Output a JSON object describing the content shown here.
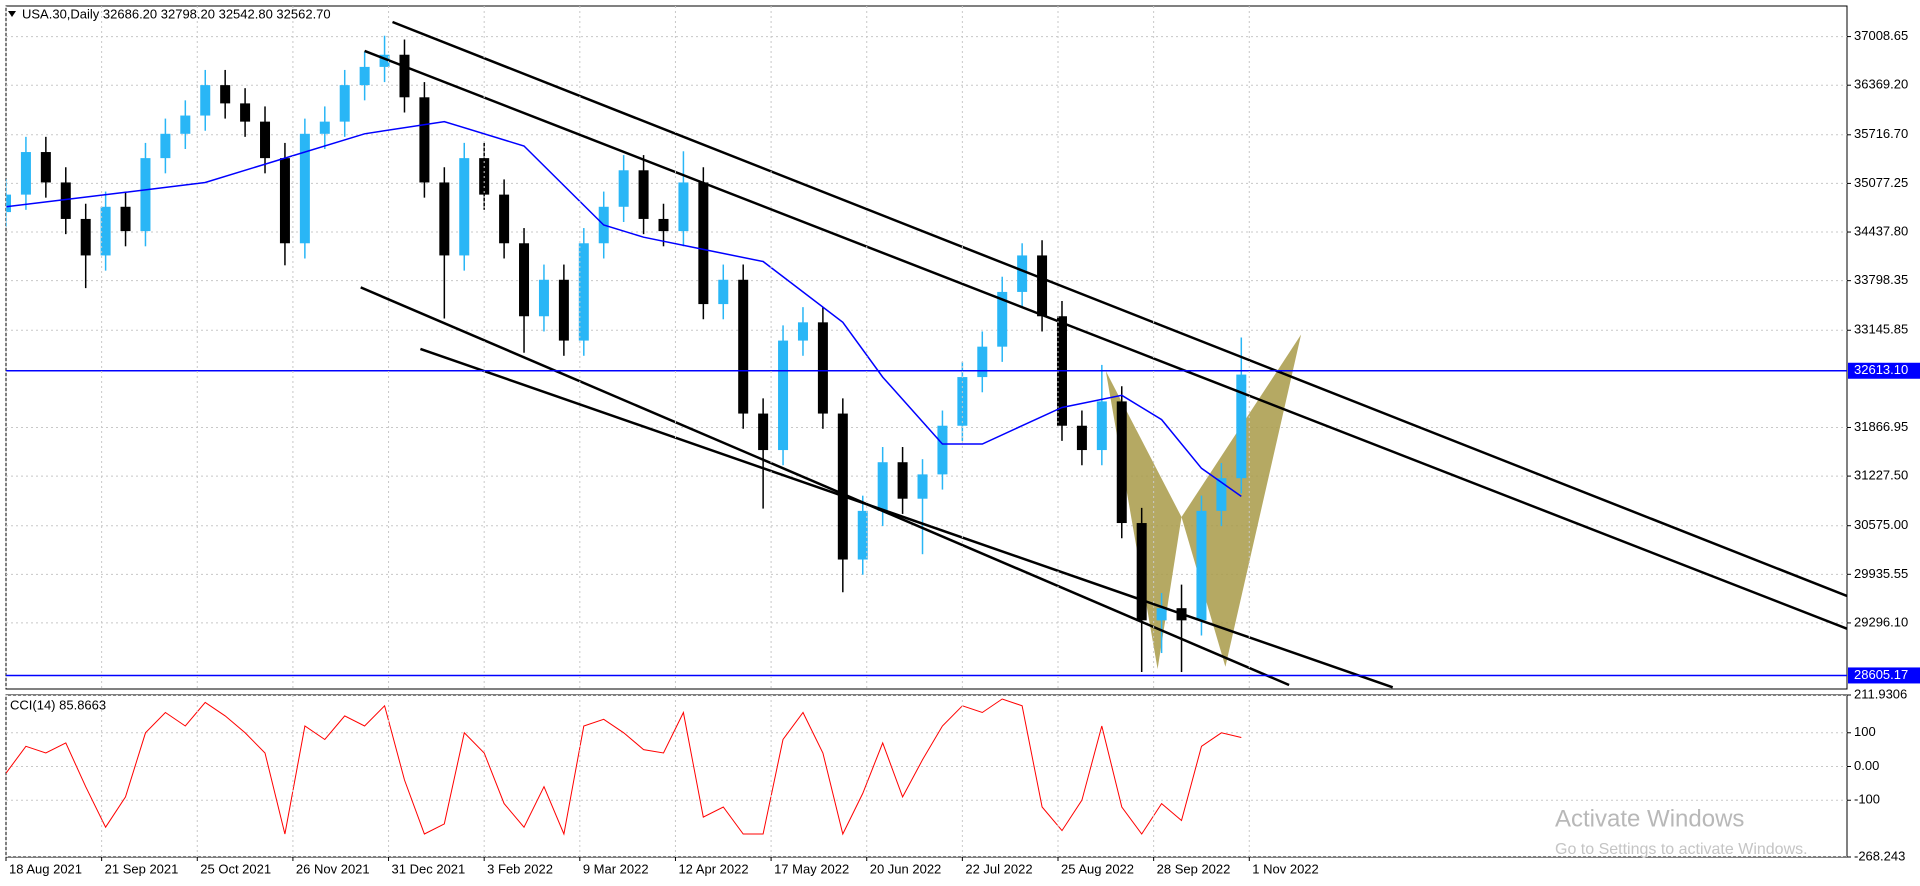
{
  "chart_data": [
    {
      "type": "candlestick",
      "title": "USA.30,Daily 32686.20 32798.20 32542.80 32562.70",
      "x": [
        0,
        5,
        10,
        15,
        20,
        25,
        30,
        35,
        40,
        45,
        50,
        55,
        60,
        65,
        70,
        75,
        80,
        85,
        90,
        95,
        100,
        105,
        110,
        115,
        120,
        125,
        130,
        135,
        140,
        145,
        150,
        155,
        160,
        165,
        170,
        175,
        180,
        185,
        190,
        195,
        200,
        205,
        210,
        215,
        220,
        225,
        230,
        235,
        240,
        245,
        250,
        255,
        260,
        265,
        270,
        275,
        280,
        285,
        290,
        295,
        300,
        305,
        310
      ],
      "open": [
        34700,
        34930,
        35490,
        35090,
        34610,
        34130,
        34770,
        34450,
        35410,
        35730,
        35970,
        36370,
        36130,
        35890,
        35410,
        34290,
        35730,
        35890,
        36370,
        36610,
        36770,
        36210,
        35090,
        34130,
        35410,
        34930,
        34290,
        33330,
        33810,
        33010,
        34290,
        34770,
        35250,
        34610,
        34450,
        35090,
        33490,
        33810,
        32050,
        31570,
        33010,
        33250,
        32050,
        30130,
        30770,
        31410,
        30930,
        31250,
        31890,
        32530,
        32930,
        33650,
        34130,
        33330,
        31890,
        31570,
        32210,
        30610,
        29330,
        29490,
        29330,
        30770,
        31200
      ],
      "high": [
        35130,
        35690,
        35690,
        35290,
        34810,
        34970,
        34970,
        35610,
        35930,
        36170,
        36570,
        36570,
        36330,
        36090,
        35610,
        35930,
        36090,
        36570,
        36810,
        37020,
        36970,
        36410,
        35290,
        35610,
        35610,
        35130,
        34490,
        34010,
        34010,
        34490,
        34970,
        35450,
        35450,
        34810,
        35500,
        35290,
        34010,
        34010,
        32250,
        33210,
        33450,
        33450,
        32250,
        30970,
        31610,
        31610,
        31450,
        32090,
        32730,
        33130,
        33850,
        34290,
        34330,
        33530,
        32090,
        32690,
        32410,
        30810,
        29690,
        29800,
        30970,
        31400,
        33050
      ],
      "low": [
        34500,
        34730,
        34890,
        34410,
        33700,
        33930,
        34250,
        34250,
        35210,
        35530,
        35770,
        35930,
        35690,
        35210,
        34000,
        34090,
        35530,
        35690,
        36170,
        36410,
        36010,
        34890,
        33300,
        33930,
        34730,
        34090,
        32850,
        33130,
        32810,
        32810,
        34090,
        34570,
        34410,
        34250,
        34250,
        33290,
        33290,
        31850,
        30800,
        31370,
        32810,
        31850,
        29700,
        29930,
        30570,
        30730,
        30200,
        31050,
        31690,
        32330,
        32730,
        33450,
        33130,
        31690,
        31370,
        31370,
        30410,
        28650,
        28900,
        28650,
        29130,
        30570,
        31000
      ],
      "close": [
        34930,
        35490,
        35090,
        34610,
        34130,
        34770,
        34450,
        35410,
        35730,
        35970,
        36370,
        36130,
        35890,
        35410,
        34290,
        35730,
        35890,
        36370,
        36610,
        36770,
        36210,
        35090,
        34130,
        35410,
        34930,
        34290,
        33330,
        33810,
        33010,
        34290,
        34770,
        35250,
        34610,
        34450,
        35090,
        33490,
        33810,
        32050,
        31570,
        33010,
        33250,
        32050,
        30130,
        30770,
        31410,
        30930,
        31250,
        31890,
        32530,
        32930,
        33650,
        34130,
        33330,
        31890,
        31570,
        32210,
        30610,
        29330,
        29490,
        29330,
        30770,
        31200,
        32562.7
      ],
      "up_color": "#29b6f6",
      "down_color": "#000000",
      "moving_average": {
        "color": "#0000ff",
        "x": [
          0,
          30,
          50,
          70,
          90,
          110,
          130,
          150,
          160,
          175,
          190,
          210,
          220,
          235,
          245,
          255,
          265,
          280,
          290,
          300,
          310
        ],
        "values": [
          34770,
          34960,
          35090,
          35410,
          35730,
          35890,
          35570,
          34530,
          34370,
          34210,
          34050,
          33250,
          32530,
          31650,
          31650,
          31890,
          32130,
          32290,
          31970,
          31330,
          30960
        ]
      },
      "trend_lines": [
        {
          "x": [
            97,
            462
          ],
          "values": [
            37200,
            29650
          ]
        },
        {
          "x": [
            90,
            462
          ],
          "values": [
            36820,
            29220
          ]
        },
        {
          "x": [
            89,
            322
          ],
          "values": [
            33710,
            28480
          ]
        },
        {
          "x": [
            104,
            348
          ],
          "values": [
            32900,
            28450
          ]
        }
      ],
      "trend_color": "#000000",
      "pattern": {
        "color": "#a89a48",
        "triangles": [
          {
            "x": [
              276,
              289,
              295
            ],
            "values": [
              32610,
              28690,
              30690
            ]
          },
          {
            "x": [
              295,
              306,
              325
            ],
            "values": [
              30690,
              28720,
              33090
            ]
          }
        ]
      },
      "hlines": [
        {
          "value": 32613.1,
          "label": "32613.10"
        },
        28605.17
      ],
      "hline_color": "#0000ff",
      "xlim": [
        0,
        462
      ],
      "ylim": [
        28427,
        37411
      ],
      "yticks": [
        37008.65,
        {
          "value": 36369.2,
          "label": "36369.20"
        },
        {
          "value": 35716.7,
          "label": "35716.70"
        },
        35077.25,
        {
          "value": 34437.8,
          "label": "34437.80"
        },
        33798.35,
        33145.85,
        31866.95,
        {
          "value": 31227.5,
          "label": "31227.50"
        },
        {
          "value": 30575,
          "label": "30575.00"
        },
        29935.55,
        {
          "value": 29296.1,
          "label": "29296.10"
        }
      ],
      "grid": true
    },
    {
      "type": "line",
      "title": "CCI(14) 85.8663",
      "x": [
        0,
        5,
        10,
        15,
        20,
        25,
        30,
        35,
        40,
        45,
        50,
        55,
        60,
        65,
        70,
        75,
        80,
        85,
        90,
        95,
        100,
        105,
        110,
        115,
        120,
        125,
        130,
        135,
        140,
        145,
        150,
        155,
        160,
        165,
        170,
        175,
        180,
        185,
        190,
        195,
        200,
        205,
        210,
        215,
        220,
        225,
        230,
        235,
        240,
        245,
        250,
        255,
        260,
        265,
        270,
        275,
        280,
        285,
        290,
        295,
        300,
        305,
        310
      ],
      "values": [
        -20,
        60,
        40,
        70,
        -60,
        -180,
        -90,
        100,
        160,
        120,
        190,
        150,
        100,
        40,
        -200,
        120,
        80,
        150,
        120,
        180,
        -40,
        -200,
        -170,
        100,
        40,
        -110,
        -180,
        -60,
        -200,
        120,
        140,
        100,
        50,
        40,
        160,
        -150,
        -120,
        -200,
        -200,
        80,
        160,
        40,
        -200,
        -80,
        70,
        -90,
        20,
        120,
        180,
        160,
        200,
        180,
        -120,
        -190,
        -100,
        120,
        -120,
        -200,
        -110,
        -160,
        60,
        100,
        85.8663
      ],
      "color": "#ff0000",
      "xlim": [
        0,
        462
      ],
      "ylim": [
        -268.243,
        211.9306
      ],
      "yticks": [
        211.9306,
        100,
        {
          "value": 0,
          "label": "0.00"
        },
        -100,
        -268.243
      ],
      "xticks": [
        {
          "value": 0,
          "label": "18 Aug 2021"
        },
        {
          "value": 24,
          "label": "21 Sep 2021"
        },
        {
          "value": 48,
          "label": "25 Oct 2021"
        },
        {
          "value": 72,
          "label": "26 Nov 2021"
        },
        {
          "value": 96,
          "label": "31 Dec 2021"
        },
        {
          "value": 120,
          "label": "3 Feb 2022"
        },
        {
          "value": 144,
          "label": "9 Mar 2022"
        },
        {
          "value": 168,
          "label": "12 Apr 2022"
        },
        {
          "value": 192,
          "label": "17 May 2022"
        },
        {
          "value": 216,
          "label": "20 Jun 2022"
        },
        {
          "value": 240,
          "label": "22 Jul 2022"
        },
        {
          "value": 264,
          "label": "25 Aug 2022"
        },
        {
          "value": 288,
          "label": "28 Sep 2022"
        },
        {
          "value": 312,
          "label": "1 Nov 2022"
        }
      ],
      "grid": true
    }
  ],
  "watermark": {
    "title": "Activate Windows",
    "subtitle": "Go to Settings to activate Windows."
  }
}
